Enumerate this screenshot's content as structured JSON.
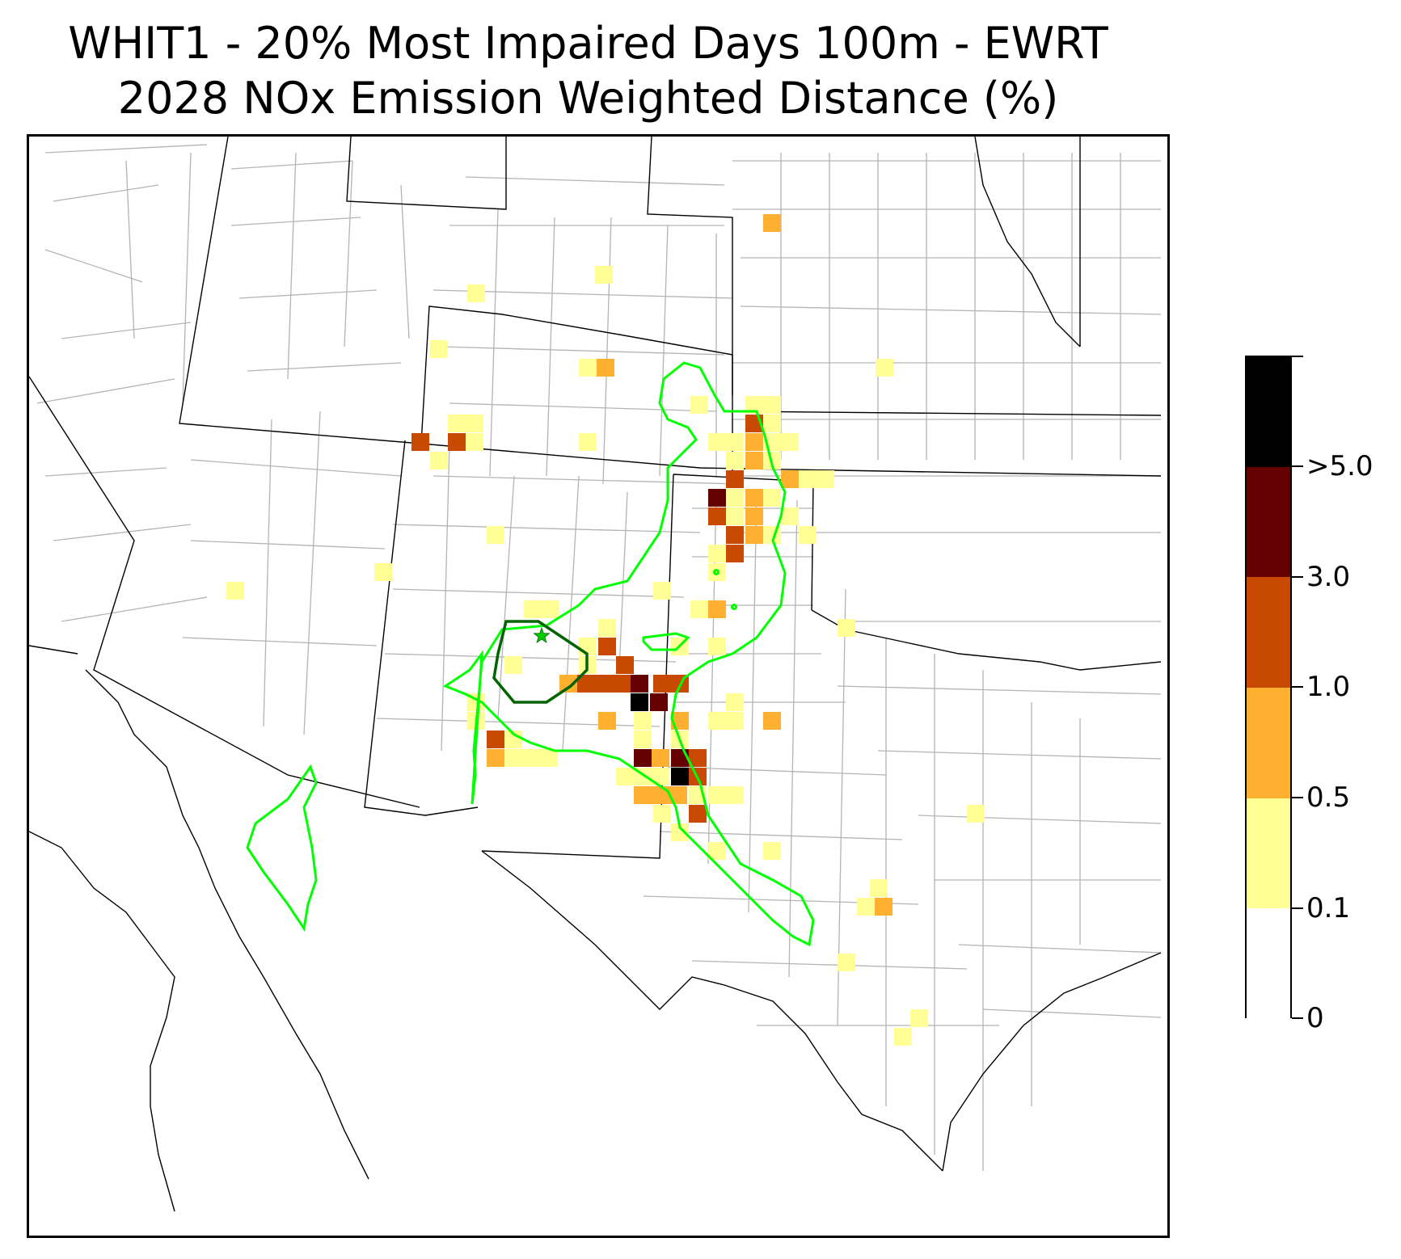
{
  "title": {
    "line1": "WHIT1 - 20% Most Impaired Days 100m - EWRT",
    "line2": "2028 NOx Emission Weighted Distance (%)"
  },
  "colorbar": {
    "labels": [
      "0",
      "0.1",
      "0.5",
      "1.0",
      "3.0",
      ">5.0"
    ],
    "colors": [
      "#ffffff",
      "#ffff96",
      "#ffb030",
      "#c84a00",
      "#640000",
      "#000000"
    ]
  },
  "map": {
    "receptor_marker": "star-icon",
    "contour_colors": {
      "outer": "#00ff00",
      "inner": "#006400"
    }
  }
}
